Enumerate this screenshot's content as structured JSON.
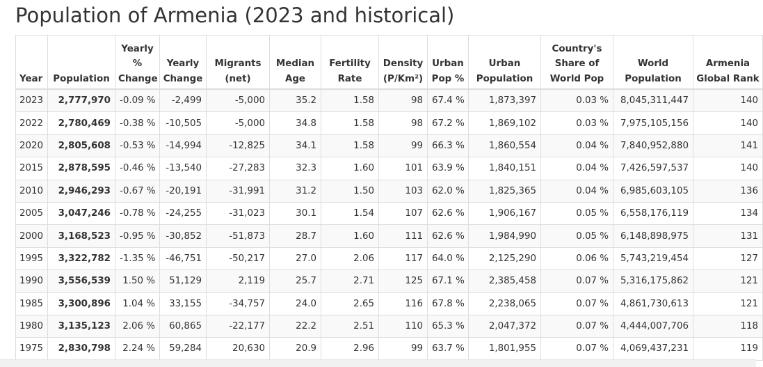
{
  "page": {
    "title": "Population of Armenia (2023 and historical)"
  },
  "table": {
    "headers": [
      "Year",
      "Population",
      "Yearly % Change",
      "Yearly Change",
      "Migrants (net)",
      "Median Age",
      "Fertility Rate",
      "Density (P/Km²)",
      "Urban Pop %",
      "Urban Population",
      "Country's Share of World Pop",
      "World Population",
      "Armenia Global Rank"
    ],
    "rows": [
      [
        "2023",
        "2,777,970",
        "-0.09 %",
        "-2,499",
        "-5,000",
        "35.2",
        "1.58",
        "98",
        "67.4 %",
        "1,873,397",
        "0.03 %",
        "8,045,311,447",
        "140"
      ],
      [
        "2022",
        "2,780,469",
        "-0.38 %",
        "-10,505",
        "-5,000",
        "34.8",
        "1.58",
        "98",
        "67.2 %",
        "1,869,102",
        "0.03 %",
        "7,975,105,156",
        "140"
      ],
      [
        "2020",
        "2,805,608",
        "-0.53 %",
        "-14,994",
        "-12,825",
        "34.1",
        "1.58",
        "99",
        "66.3 %",
        "1,860,554",
        "0.04 %",
        "7,840,952,880",
        "141"
      ],
      [
        "2015",
        "2,878,595",
        "-0.46 %",
        "-13,540",
        "-27,283",
        "32.3",
        "1.60",
        "101",
        "63.9 %",
        "1,840,151",
        "0.04 %",
        "7,426,597,537",
        "140"
      ],
      [
        "2010",
        "2,946,293",
        "-0.67 %",
        "-20,191",
        "-31,991",
        "31.2",
        "1.50",
        "103",
        "62.0 %",
        "1,825,365",
        "0.04 %",
        "6,985,603,105",
        "136"
      ],
      [
        "2005",
        "3,047,246",
        "-0.78 %",
        "-24,255",
        "-31,023",
        "30.1",
        "1.54",
        "107",
        "62.6 %",
        "1,906,167",
        "0.05 %",
        "6,558,176,119",
        "134"
      ],
      [
        "2000",
        "3,168,523",
        "-0.95 %",
        "-30,852",
        "-51,873",
        "28.7",
        "1.60",
        "111",
        "62.6 %",
        "1,984,990",
        "0.05 %",
        "6,148,898,975",
        "131"
      ],
      [
        "1995",
        "3,322,782",
        "-1.35 %",
        "-46,751",
        "-50,217",
        "27.0",
        "2.06",
        "117",
        "64.0 %",
        "2,125,290",
        "0.06 %",
        "5,743,219,454",
        "127"
      ],
      [
        "1990",
        "3,556,539",
        "1.50 %",
        "51,129",
        "2,119",
        "25.7",
        "2.71",
        "125",
        "67.1 %",
        "2,385,458",
        "0.07 %",
        "5,316,175,862",
        "121"
      ],
      [
        "1985",
        "3,300,896",
        "1.04 %",
        "33,155",
        "-34,757",
        "24.0",
        "2.65",
        "116",
        "67.8 %",
        "2,238,065",
        "0.07 %",
        "4,861,730,613",
        "121"
      ],
      [
        "1980",
        "3,135,123",
        "2.06 %",
        "60,865",
        "-22,177",
        "22.2",
        "2.51",
        "110",
        "65.3 %",
        "2,047,372",
        "0.07 %",
        "4,444,007,706",
        "118"
      ],
      [
        "1975",
        "2,830,798",
        "2.24 %",
        "59,284",
        "20,630",
        "20.9",
        "2.96",
        "99",
        "63.7 %",
        "1,801,955",
        "0.07 %",
        "4,069,437,231",
        "119"
      ]
    ]
  }
}
